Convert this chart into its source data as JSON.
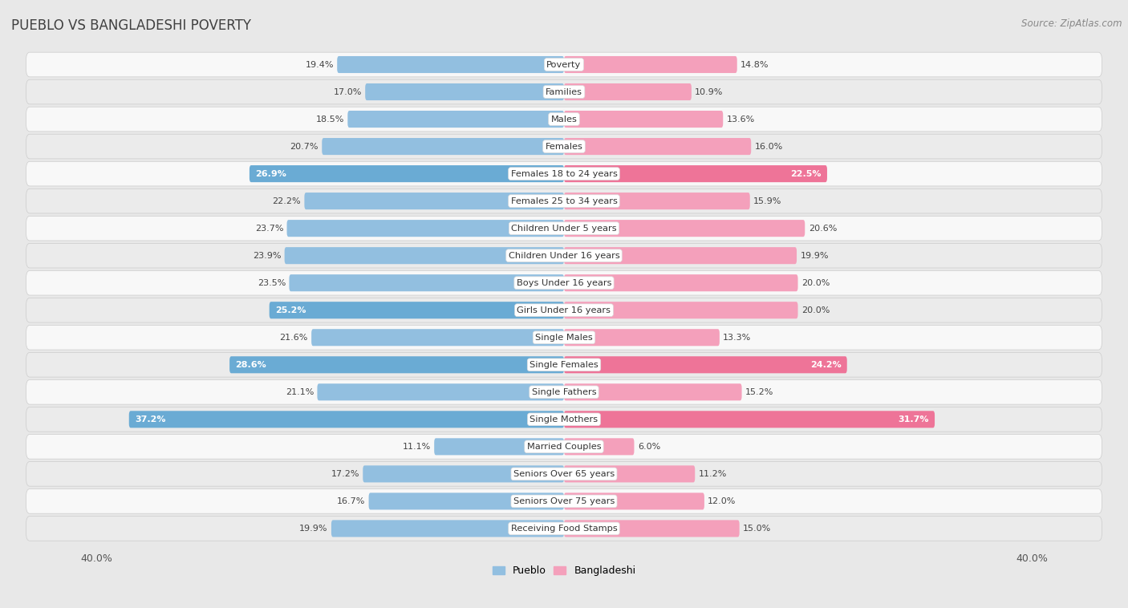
{
  "title": "PUEBLO VS BANGLADESHI POVERTY",
  "source": "Source: ZipAtlas.com",
  "categories": [
    "Poverty",
    "Families",
    "Males",
    "Females",
    "Females 18 to 24 years",
    "Females 25 to 34 years",
    "Children Under 5 years",
    "Children Under 16 years",
    "Boys Under 16 years",
    "Girls Under 16 years",
    "Single Males",
    "Single Females",
    "Single Fathers",
    "Single Mothers",
    "Married Couples",
    "Seniors Over 65 years",
    "Seniors Over 75 years",
    "Receiving Food Stamps"
  ],
  "pueblo_values": [
    19.4,
    17.0,
    18.5,
    20.7,
    26.9,
    22.2,
    23.7,
    23.9,
    23.5,
    25.2,
    21.6,
    28.6,
    21.1,
    37.2,
    11.1,
    17.2,
    16.7,
    19.9
  ],
  "bangladeshi_values": [
    14.8,
    10.9,
    13.6,
    16.0,
    22.5,
    15.9,
    20.6,
    19.9,
    20.0,
    20.0,
    13.3,
    24.2,
    15.2,
    31.7,
    6.0,
    11.2,
    12.0,
    15.0
  ],
  "pueblo_color": "#92BFE0",
  "bangladeshi_color": "#F4A0BB",
  "pueblo_highlight_color": "#6AABD4",
  "bangladeshi_highlight_color": "#EE7498",
  "pueblo_highlight_indices": [
    4,
    9,
    11,
    13
  ],
  "bangladeshi_highlight_indices": [
    4,
    11,
    13
  ],
  "background_color": "#e8e8e8",
  "row_color_light": "#f8f8f8",
  "row_color_dark": "#ebebeb",
  "axis_limit": 40.0,
  "bar_height": 0.62,
  "title_fontsize": 12,
  "label_fontsize": 8.2,
  "value_fontsize": 8.0
}
